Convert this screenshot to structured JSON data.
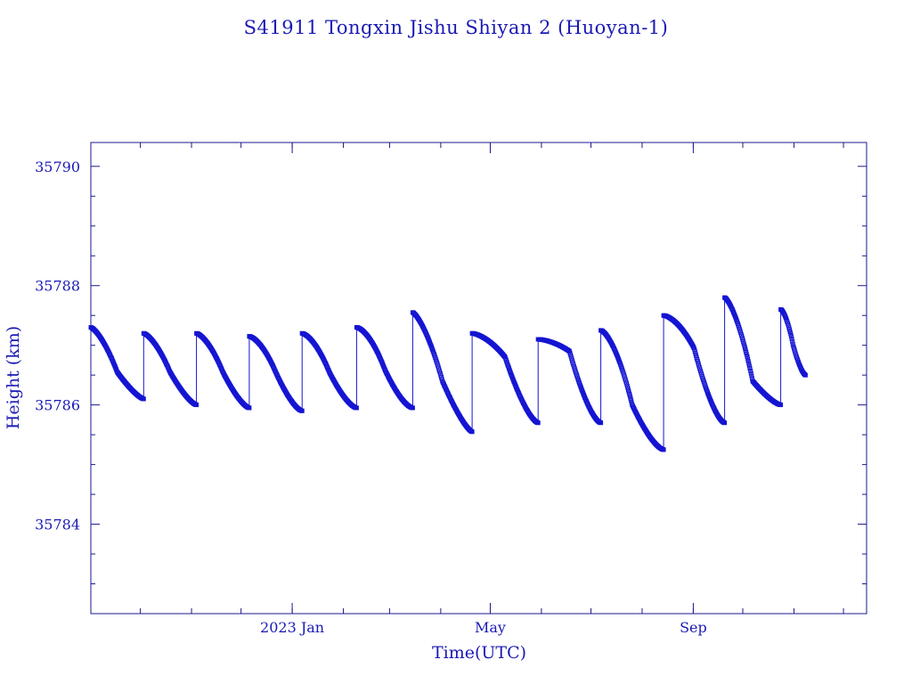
{
  "chart_data": {
    "type": "scatter",
    "title": "S41911 Tongxin Jishu Shiyan 2  (Huoyan-1)",
    "xlabel": "Time(UTC)",
    "ylabel": "Height (km)",
    "x_range": [
      "2022-09-01",
      "2023-12-15"
    ],
    "ylim": [
      35782.5,
      35790.4
    ],
    "y_ticks": [
      35784,
      35786,
      35788,
      35790
    ],
    "x_ticks": [
      {
        "date": "2023-01-01",
        "label": "2023 Jan"
      },
      {
        "date": "2023-05-01",
        "label": "May"
      },
      {
        "date": "2023-09-01",
        "label": "Sep"
      }
    ],
    "grid": false,
    "legend": "none",
    "marker": "open-square",
    "color": "#1515d2",
    "segments": [
      {
        "start": "2022-09-01",
        "end": "2022-10-03",
        "y_start": 35787.3,
        "y_mid": 35786.55,
        "y_end": 35786.1,
        "bias": 0.35
      },
      {
        "start": "2022-10-03",
        "end": "2022-11-04",
        "y_start": 35787.2,
        "y_mid": 35786.55,
        "y_end": 35786.0,
        "bias": 0.4
      },
      {
        "start": "2022-11-04",
        "end": "2022-12-06",
        "y_start": 35787.2,
        "y_mid": 35786.55,
        "y_end": 35785.95,
        "bias": 0.45
      },
      {
        "start": "2022-12-06",
        "end": "2023-01-07",
        "y_start": 35787.15,
        "y_mid": 35786.55,
        "y_end": 35785.9,
        "bias": 0.5
      },
      {
        "start": "2023-01-07",
        "end": "2023-02-09",
        "y_start": 35787.2,
        "y_mid": 35786.55,
        "y_end": 35785.95,
        "bias": 0.5
      },
      {
        "start": "2023-02-09",
        "end": "2023-03-15",
        "y_start": 35787.3,
        "y_mid": 35786.6,
        "y_end": 35785.95,
        "bias": 0.55
      },
      {
        "start": "2023-03-15",
        "end": "2023-04-20",
        "y_start": 35787.55,
        "y_mid": 35786.4,
        "y_end": 35785.55,
        "bias": 0.35
      },
      {
        "start": "2023-04-20",
        "end": "2023-05-30",
        "y_start": 35787.2,
        "y_mid": 35786.8,
        "y_end": 35785.7,
        "bias": 0.5
      },
      {
        "start": "2023-05-30",
        "end": "2023-07-07",
        "y_start": 35787.1,
        "y_mid": 35786.9,
        "y_end": 35785.7,
        "bias": 0.55
      },
      {
        "start": "2023-07-07",
        "end": "2023-08-14",
        "y_start": 35787.25,
        "y_mid": 35786.0,
        "y_end": 35785.25,
        "bias": 0.5
      },
      {
        "start": "2023-08-14",
        "end": "2023-09-20",
        "y_start": 35787.5,
        "y_mid": 35786.95,
        "y_end": 35785.7,
        "bias": 0.55
      },
      {
        "start": "2023-09-20",
        "end": "2023-10-24",
        "y_start": 35787.8,
        "y_mid": 35786.4,
        "y_end": 35786.0,
        "bias": 0.4
      },
      {
        "start": "2023-10-24",
        "end": "2023-11-08",
        "y_start": 35787.6,
        "y_mid": 35787.0,
        "y_end": 35786.5,
        "bias": 0.5
      }
    ]
  }
}
